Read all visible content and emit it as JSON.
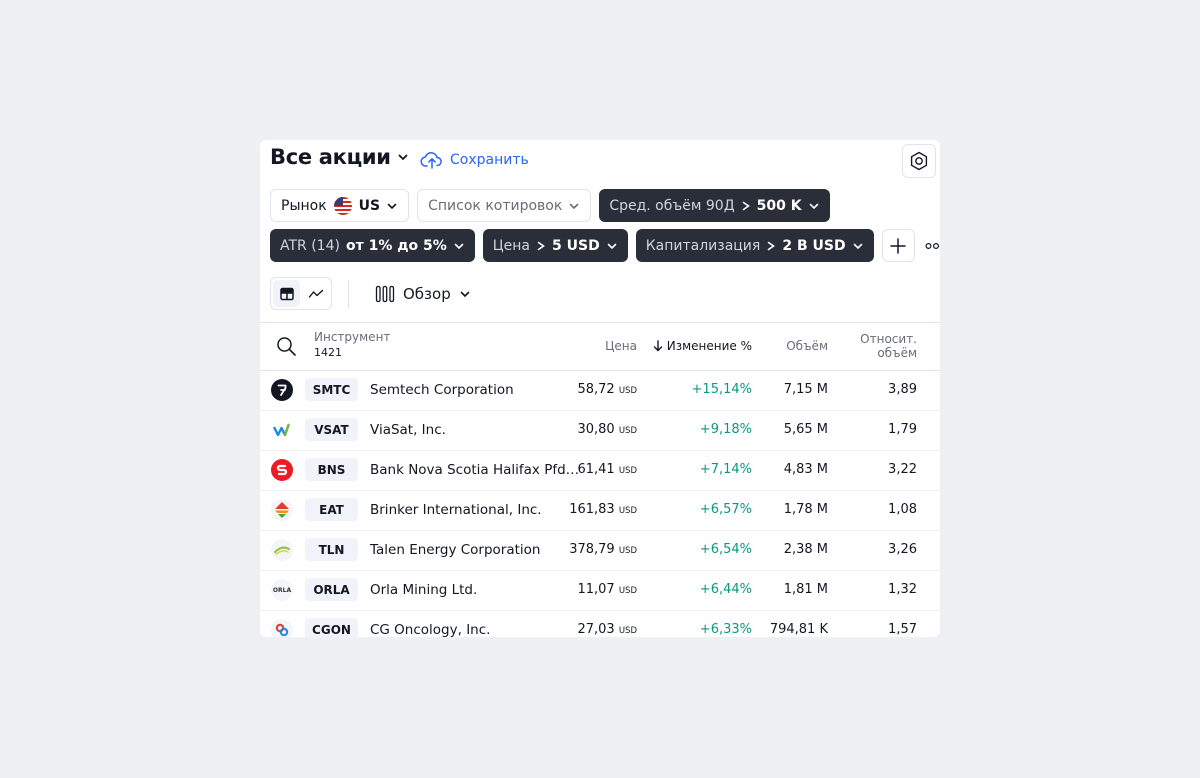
{
  "header": {
    "title": "Все акции",
    "save_label": "Сохранить"
  },
  "filters": {
    "market_label": "Рынок",
    "market_value": "US",
    "watchlist_label": "Список котировок",
    "avg_volume_label": "Сред. объём 90Д",
    "avg_volume_value": "500 K",
    "atr_label": "ATR (14)",
    "atr_value": "от 1% до 5%",
    "price_label": "Цена",
    "price_value": "5 USD",
    "cap_label": "Капитализация",
    "cap_value": "2 B USD"
  },
  "view": {
    "columns_label": "Обзор"
  },
  "table": {
    "headers": {
      "instrument": "Инструмент",
      "count": "1421",
      "price": "Цена",
      "change": "Изменение %",
      "volume": "Объём",
      "rel_volume_1": "Относит.",
      "rel_volume_2": "объём"
    },
    "currency": "USD",
    "rows": [
      {
        "ticker": "SMTC",
        "name": "Semtech Corporation",
        "price": "58,72",
        "change": "+15,14%",
        "volume": "7,15 M",
        "rel_volume": "3,89"
      },
      {
        "ticker": "VSAT",
        "name": "ViaSat, Inc.",
        "price": "30,80",
        "change": "+9,18%",
        "volume": "5,65 M",
        "rel_volume": "1,79"
      },
      {
        "ticker": "BNS",
        "name": "Bank Nova Scotia Halifax Pfd…",
        "price": "61,41",
        "change": "+7,14%",
        "volume": "4,83 M",
        "rel_volume": "3,22"
      },
      {
        "ticker": "EAT",
        "name": "Brinker International, Inc.",
        "price": "161,83",
        "change": "+6,57%",
        "volume": "1,78 M",
        "rel_volume": "1,08"
      },
      {
        "ticker": "TLN",
        "name": "Talen Energy Corporation",
        "price": "378,79",
        "change": "+6,54%",
        "volume": "2,38 M",
        "rel_volume": "3,26"
      },
      {
        "ticker": "ORLA",
        "name": "Orla Mining Ltd.",
        "price": "11,07",
        "change": "+6,44%",
        "volume": "1,81 M",
        "rel_volume": "1,32"
      },
      {
        "ticker": "CGON",
        "name": "CG Oncology, Inc.",
        "price": "27,03",
        "change": "+6,33%",
        "volume": "794,81 K",
        "rel_volume": "1,57"
      }
    ]
  },
  "logo_labels": {
    "orla": "ORLA"
  },
  "colors": {
    "accent": "#2962ff",
    "positive": "#089981",
    "chip_dark": "#2a2e39"
  }
}
